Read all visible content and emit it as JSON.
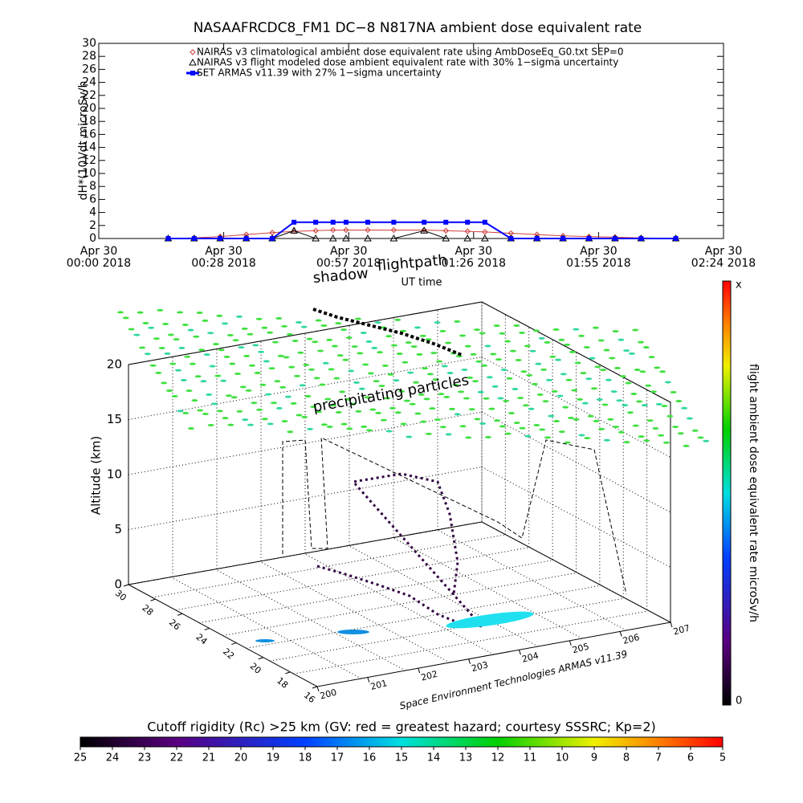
{
  "chart_data": [
    {
      "type": "line",
      "title": "NASAAFRCDC8_FM1 DC−8    N817NA ambient dose equivalent rate",
      "ylabel": "dH*(10)/dt microSv/h",
      "xlabel": "UT time",
      "x": [
        16,
        22,
        28,
        34,
        40,
        45,
        50,
        54,
        57,
        62,
        68,
        75,
        80,
        85,
        89,
        95,
        101,
        107,
        113,
        119,
        125,
        133
      ],
      "xlim": [
        0,
        144
      ],
      "xticks": [
        {
          "value": 0,
          "label": "Apr 30\n00:00 2018"
        },
        {
          "value": 28.8,
          "label": "Apr 30\n00:28 2018"
        },
        {
          "value": 57.6,
          "label": "Apr 30\n00:57 2018"
        },
        {
          "value": 86.4,
          "label": "Apr 30\n01:26 2018"
        },
        {
          "value": 115.2,
          "label": "Apr 30\n01:55 2018"
        },
        {
          "value": 144,
          "label": "Apr 30\n02:24 2018"
        }
      ],
      "ylim": [
        0,
        30
      ],
      "yticks": [
        0,
        2,
        4,
        6,
        8,
        10,
        12,
        14,
        16,
        18,
        20,
        22,
        24,
        26,
        28,
        30
      ],
      "legend": "upper center",
      "series": [
        {
          "name": "NAIRAS v3 climatological ambient dose equivalent rate using AmbDoseEq_G0.txt SEP=0",
          "color": "#d04040",
          "marker": "diamond",
          "values": [
            0,
            0.1,
            0.3,
            0.6,
            0.9,
            1.1,
            1.2,
            1.3,
            1.3,
            1.3,
            1.3,
            1.3,
            1.2,
            1.1,
            1.0,
            0.8,
            0.6,
            0.4,
            0.3,
            0.2,
            0.1,
            0
          ]
        },
        {
          "name": "NAIRAS v3 flight modeled dose ambient equivalent rate with 30% 1−sigma uncertainty",
          "color": "#000000",
          "marker": "triangle",
          "values": [
            0,
            0,
            0,
            0,
            0,
            1.2,
            0,
            0,
            0,
            0,
            0,
            1.2,
            0,
            0,
            0,
            0,
            0,
            0,
            0,
            0,
            0,
            0
          ]
        },
        {
          "name": "SET ARMAS v11.39 with 27% 1−sigma uncertainty",
          "color": "#0000ff",
          "marker": "square",
          "values": [
            0,
            0,
            0,
            0,
            0,
            2.5,
            2.5,
            2.5,
            2.5,
            2.5,
            2.5,
            2.5,
            2.5,
            2.5,
            2.5,
            0,
            0,
            0,
            0,
            0,
            0,
            0
          ]
        }
      ]
    },
    {
      "type": "surface3d",
      "annotations": [
        "shadow",
        "flightpath",
        "precipitating particles"
      ],
      "zlabel": "Altitude (km)",
      "zlim": [
        0,
        20
      ],
      "zticks": [
        0,
        5,
        10,
        15,
        20
      ],
      "ylim": [
        30,
        16
      ],
      "yticks": [
        30,
        28,
        26,
        24,
        22,
        20,
        18,
        16
      ],
      "xlim": [
        200,
        207
      ],
      "xticks": [
        200,
        201,
        202,
        203,
        204,
        205,
        206,
        207
      ],
      "credit": "Space Environment Technologies ARMAS v11.39",
      "colorbar_label": "flight ambient dose equivalent rate microSv/h",
      "colorbar_range_labels": [
        "0",
        "x"
      ]
    },
    {
      "type": "colorbar",
      "title": "Cutoff rigidity (Rc) >25 km (GV: red = greatest hazard; courtesy SSSRC; Kp=2)",
      "lim": [
        25,
        5
      ],
      "ticks": [
        25,
        24,
        23,
        22,
        21,
        20,
        19,
        18,
        17,
        16,
        15,
        14,
        13,
        12,
        11,
        10,
        9,
        8,
        7,
        6,
        5
      ]
    }
  ]
}
